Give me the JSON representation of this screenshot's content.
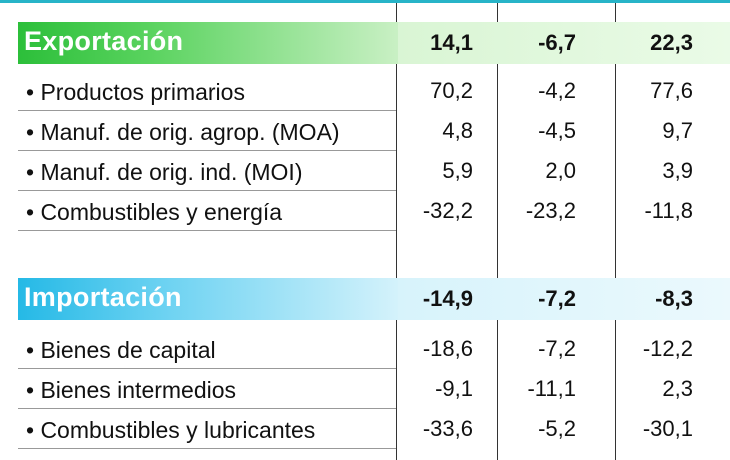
{
  "sections": [
    {
      "title": "Exportación",
      "values": [
        "14,1",
        "-6,7",
        "22,3"
      ],
      "rows": [
        {
          "label": "• Productos primarios",
          "values": [
            "70,2",
            "-4,2",
            "77,6"
          ]
        },
        {
          "label": "• Manuf. de orig. agrop. (MOA)",
          "values": [
            "4,8",
            "-4,5",
            "9,7"
          ]
        },
        {
          "label": "• Manuf. de orig. ind. (MOI)",
          "values": [
            "5,9",
            "2,0",
            "3,9"
          ]
        },
        {
          "label": "• Combustibles y energía",
          "values": [
            "-32,2",
            "-23,2",
            "-11,8"
          ]
        }
      ]
    },
    {
      "title": "Importación",
      "values": [
        "-14,9",
        "-7,2",
        "-8,3"
      ],
      "rows": [
        {
          "label": "• Bienes de capital",
          "values": [
            "-18,6",
            "-7,2",
            "-12,2"
          ]
        },
        {
          "label": "• Bienes intermedios",
          "values": [
            "-9,1",
            "-11,1",
            "2,3"
          ]
        },
        {
          "label": "• Combustibles y lubricantes",
          "values": [
            "-33,6",
            "-5,2",
            "-30,1"
          ]
        }
      ]
    }
  ],
  "colors": {
    "export_header": "#2cbf3a",
    "import_header": "#25b9e6",
    "top_rule": "#27b4c8"
  }
}
